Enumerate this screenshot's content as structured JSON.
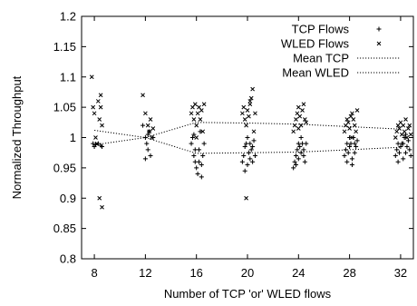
{
  "chart_data": {
    "type": "scatter",
    "title": "",
    "xlabel": "Number of TCP 'or' WLED flows",
    "ylabel": "Normalized Throughput",
    "xlim": [
      7,
      33
    ],
    "ylim": [
      0.8,
      1.2
    ],
    "x_ticks": [
      8,
      12,
      16,
      20,
      24,
      28,
      32
    ],
    "y_ticks": [
      0.8,
      0.85,
      0.9,
      0.95,
      1,
      1.05,
      1.1,
      1.15,
      1.2
    ],
    "x_tick_labels": [
      "8",
      "12",
      "16",
      "20",
      "24",
      "28",
      "32"
    ],
    "y_tick_labels": [
      "0.8",
      "0.85",
      "0.9",
      "0.95",
      "1",
      "1.05",
      "1.1",
      "1.15",
      "1.2"
    ],
    "legend_position": "top-right",
    "grid": false,
    "series": [
      {
        "name": "TCP Flows",
        "kind": "scatter",
        "marker": "+",
        "points": [
          [
            7.9,
            0.99
          ],
          [
            8.0,
            0.985
          ],
          [
            8.1,
            0.988
          ],
          [
            8.3,
            0.99
          ],
          [
            8.5,
            0.987
          ],
          [
            8.6,
            0.985
          ],
          [
            11.8,
            1.02
          ],
          [
            12.0,
            1.0
          ],
          [
            12.1,
            0.99
          ],
          [
            12.2,
            0.98
          ],
          [
            12.3,
            1.01
          ],
          [
            12.4,
            0.97
          ],
          [
            12.2,
            1.005
          ],
          [
            12.6,
            1.0
          ],
          [
            12.0,
            0.965
          ],
          [
            15.6,
            0.99
          ],
          [
            15.7,
            1.0
          ],
          [
            15.8,
            0.97
          ],
          [
            15.9,
            0.96
          ],
          [
            16.0,
            0.95
          ],
          [
            16.1,
            0.94
          ],
          [
            16.2,
            0.98
          ],
          [
            16.3,
            1.01
          ],
          [
            16.4,
            0.935
          ],
          [
            16.5,
            0.97
          ],
          [
            16.6,
            0.99
          ],
          [
            15.9,
            0.98
          ],
          [
            16.2,
            0.96
          ],
          [
            16.4,
            0.955
          ],
          [
            15.8,
            1.005
          ],
          [
            19.6,
            0.96
          ],
          [
            19.7,
            0.97
          ],
          [
            19.8,
            0.985
          ],
          [
            19.9,
            0.99
          ],
          [
            20.0,
            0.955
          ],
          [
            20.1,
            0.975
          ],
          [
            20.2,
            0.965
          ],
          [
            20.3,
            0.98
          ],
          [
            20.4,
            0.985
          ],
          [
            20.5,
            0.995
          ],
          [
            20.6,
            0.97
          ],
          [
            19.8,
            0.945
          ],
          [
            20.2,
            0.99
          ],
          [
            20.4,
            0.96
          ],
          [
            20.0,
            1.0
          ],
          [
            23.6,
            0.95
          ],
          [
            23.7,
            0.96
          ],
          [
            23.8,
            0.97
          ],
          [
            23.9,
            0.98
          ],
          [
            24.0,
            0.965
          ],
          [
            24.1,
            0.985
          ],
          [
            24.2,
            0.975
          ],
          [
            24.3,
            0.99
          ],
          [
            24.4,
            0.97
          ],
          [
            24.5,
            0.96
          ],
          [
            24.6,
            0.99
          ],
          [
            23.8,
            0.955
          ],
          [
            24.2,
            1.0
          ],
          [
            24.4,
            0.98
          ],
          [
            24.0,
            0.99
          ],
          [
            27.6,
            0.97
          ],
          [
            27.7,
            0.98
          ],
          [
            27.8,
            0.99
          ],
          [
            27.9,
            0.975
          ],
          [
            28.0,
            0.985
          ],
          [
            28.1,
            0.99
          ],
          [
            28.2,
            0.965
          ],
          [
            28.3,
            1.0
          ],
          [
            28.4,
            0.975
          ],
          [
            28.5,
            0.985
          ],
          [
            28.6,
            0.995
          ],
          [
            27.8,
            0.96
          ],
          [
            28.2,
            0.955
          ],
          [
            28.4,
            0.99
          ],
          [
            28.0,
            1.0
          ],
          [
            31.6,
            0.97
          ],
          [
            31.7,
            0.98
          ],
          [
            31.8,
            0.99
          ],
          [
            31.9,
            0.975
          ],
          [
            32.0,
            0.985
          ],
          [
            32.1,
            0.99
          ],
          [
            32.2,
            0.965
          ],
          [
            32.3,
            1.0
          ],
          [
            32.4,
            0.975
          ],
          [
            32.5,
            0.985
          ],
          [
            32.6,
            0.995
          ],
          [
            32.7,
            0.98
          ],
          [
            31.8,
            0.96
          ],
          [
            32.2,
            0.99
          ],
          [
            32.4,
            1.005
          ],
          [
            32.8,
            0.97
          ]
        ]
      },
      {
        "name": "WLED Flows",
        "kind": "scatter",
        "marker": "x",
        "points": [
          [
            7.8,
            1.1
          ],
          [
            7.9,
            1.05
          ],
          [
            8.0,
            1.04
          ],
          [
            8.1,
            1.0
          ],
          [
            8.2,
            0.99
          ],
          [
            8.3,
            1.06
          ],
          [
            8.4,
            1.03
          ],
          [
            8.5,
            1.07
          ],
          [
            8.6,
            1.02
          ],
          [
            8.4,
            0.9
          ],
          [
            8.6,
            0.885
          ],
          [
            8.5,
            1.05
          ],
          [
            11.8,
            1.07
          ],
          [
            12.0,
            1.04
          ],
          [
            12.2,
            1.02
          ],
          [
            12.3,
            1.01
          ],
          [
            12.4,
            1.03
          ],
          [
            12.5,
            1.0
          ],
          [
            12.6,
            1.015
          ],
          [
            15.6,
            1.04
          ],
          [
            15.7,
            1.05
          ],
          [
            15.8,
            1.03
          ],
          [
            15.9,
            1.055
          ],
          [
            16.0,
            1.02
          ],
          [
            16.1,
            1.04
          ],
          [
            16.2,
            1.05
          ],
          [
            16.3,
            1.03
          ],
          [
            16.4,
            1.045
          ],
          [
            16.5,
            1.01
          ],
          [
            16.6,
            1.055
          ],
          [
            16.0,
            1.0
          ],
          [
            19.6,
            1.04
          ],
          [
            19.7,
            1.05
          ],
          [
            19.8,
            1.03
          ],
          [
            19.9,
            1.02
          ],
          [
            20.0,
            1.045
          ],
          [
            20.1,
            1.035
          ],
          [
            20.2,
            1.055
          ],
          [
            20.3,
            1.065
          ],
          [
            20.4,
            1.08
          ],
          [
            20.5,
            1.01
          ],
          [
            20.6,
            1.04
          ],
          [
            20.2,
            1.06
          ],
          [
            19.9,
            0.9
          ],
          [
            23.6,
            1.01
          ],
          [
            23.7,
            1.02
          ],
          [
            23.8,
            1.03
          ],
          [
            23.9,
            1.04
          ],
          [
            24.0,
            1.05
          ],
          [
            24.1,
            1.035
          ],
          [
            24.2,
            1.02
          ],
          [
            24.3,
            1.045
          ],
          [
            24.4,
            1.055
          ],
          [
            24.5,
            1.03
          ],
          [
            24.6,
            1.025
          ],
          [
            24.0,
            1.015
          ],
          [
            27.6,
            1.01
          ],
          [
            27.7,
            1.02
          ],
          [
            27.8,
            1.03
          ],
          [
            27.9,
            1.025
          ],
          [
            28.0,
            1.015
          ],
          [
            28.1,
            1.035
          ],
          [
            28.2,
            1.04
          ],
          [
            28.3,
            1.03
          ],
          [
            28.4,
            1.02
          ],
          [
            28.5,
            1.01
          ],
          [
            28.6,
            1.045
          ],
          [
            28.2,
            1.0
          ],
          [
            31.6,
            1.0
          ],
          [
            31.7,
            1.01
          ],
          [
            31.8,
            1.02
          ],
          [
            31.9,
            1.015
          ],
          [
            32.0,
            1.025
          ],
          [
            32.1,
            1.005
          ],
          [
            32.2,
            1.02
          ],
          [
            32.3,
            1.01
          ],
          [
            32.4,
            1.03
          ],
          [
            32.5,
            1.0
          ],
          [
            32.6,
            1.015
          ],
          [
            32.7,
            1.02
          ],
          [
            32.8,
            1.005
          ]
        ]
      },
      {
        "name": "Mean TCP",
        "kind": "line",
        "style": "dotted",
        "x": [
          8,
          12,
          16,
          20,
          24,
          28,
          32
        ],
        "y": [
          0.988,
          1.0,
          0.974,
          0.975,
          0.976,
          0.98,
          0.984
        ]
      },
      {
        "name": "Mean WLED",
        "kind": "line",
        "style": "dotted",
        "x": [
          8,
          12,
          16,
          20,
          24,
          28,
          32
        ],
        "y": [
          1.012,
          1.0,
          1.025,
          1.024,
          1.022,
          1.018,
          1.014
        ]
      }
    ]
  }
}
